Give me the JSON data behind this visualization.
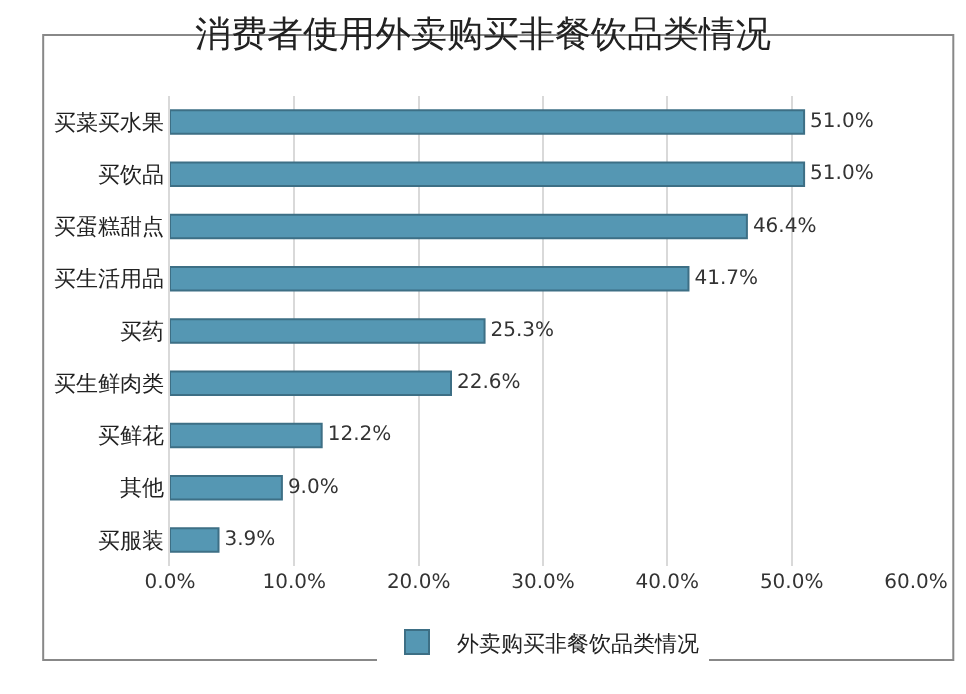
{
  "chart_data": {
    "type": "bar",
    "orientation": "horizontal",
    "title": "消费者使用外卖购买非餐饮品类情况",
    "categories": [
      "买菜买水果",
      "买饮品",
      "买蛋糕甜点",
      "买生活用品",
      "买药",
      "买生鲜肉类",
      "买鲜花",
      "其他",
      "买服装"
    ],
    "series": [
      {
        "name": "外卖购买非餐饮品类情况",
        "color": "#5597b3",
        "values": [
          51.0,
          51.0,
          46.4,
          41.7,
          25.3,
          22.6,
          12.2,
          9.0,
          3.9
        ],
        "value_labels": [
          "51.0%",
          "51.0%",
          "46.4%",
          "41.7%",
          "25.3%",
          "22.6%",
          "12.2%",
          "9.0%",
          "3.9%"
        ]
      }
    ],
    "xlim": [
      0,
      60
    ],
    "xticks": [
      {
        "value": 0,
        "label": "0.0%"
      },
      {
        "value": 10,
        "label": "10.0%"
      },
      {
        "value": 20,
        "label": "20.0%"
      },
      {
        "value": 30,
        "label": "30.0%"
      },
      {
        "value": 40,
        "label": "40.0%"
      },
      {
        "value": 50,
        "label": "50.0%"
      },
      {
        "value": 60,
        "label": "60.0%"
      }
    ],
    "grid": "x",
    "legend": "bottom"
  }
}
